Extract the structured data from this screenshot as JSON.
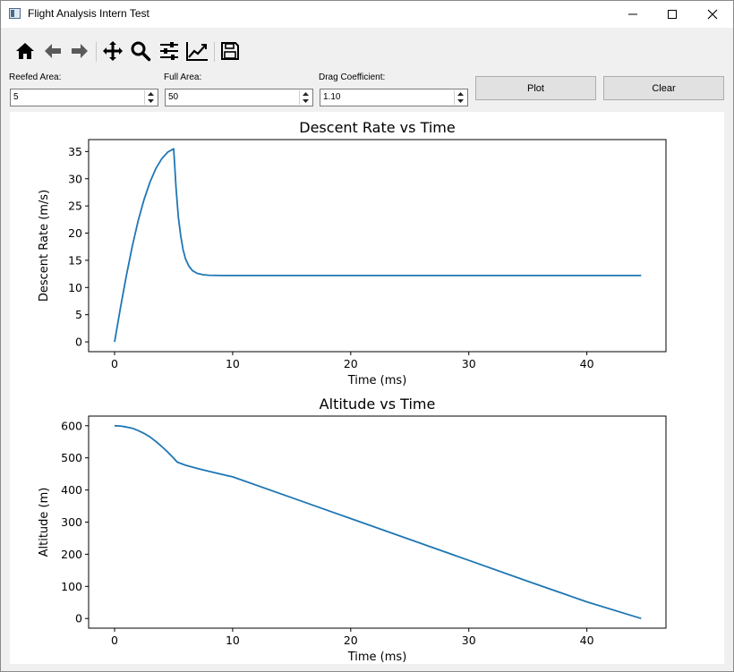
{
  "window": {
    "title": "Flight Analysis Intern Test"
  },
  "toolbar": {
    "icons": [
      "home-icon",
      "back-arrow-icon",
      "forward-arrow-icon",
      "pan-icon",
      "zoom-icon",
      "configure-subplots-icon",
      "edit-axis-icon",
      "save-icon"
    ]
  },
  "inputs": {
    "reefed_area": {
      "label": "Reefed Area:",
      "value": "5"
    },
    "full_area": {
      "label": "Full Area:",
      "value": "50"
    },
    "drag_coefficient": {
      "label": "Drag Coefficient:",
      "value": "1.10"
    }
  },
  "buttons": {
    "plot": "Plot",
    "clear": "Clear"
  },
  "colors": {
    "series": "#1f77b4"
  },
  "chart_data": [
    {
      "type": "line",
      "title": "Descent Rate vs Time",
      "xlabel": "Time (ms)",
      "ylabel": "Descent Rate (m/s)",
      "xlim": [
        -2.2,
        46.7
      ],
      "ylim": [
        -1.8,
        37.2
      ],
      "xticks": [
        0,
        10,
        20,
        30,
        40
      ],
      "yticks": [
        0,
        5,
        10,
        15,
        20,
        25,
        30,
        35
      ],
      "grid": false,
      "series": [
        {
          "x": [
            0,
            0.5,
            1,
            1.5,
            2,
            2.5,
            3,
            3.5,
            4,
            4.5,
            5,
            5.05,
            5.2,
            5.4,
            5.6,
            5.8,
            6.0,
            6.3,
            6.6,
            7.0,
            7.5,
            8.0,
            9.0,
            10.0,
            12.0,
            15,
            20,
            25,
            30,
            35,
            40,
            44.6
          ],
          "y": [
            0,
            6.3,
            12.2,
            17.6,
            22.3,
            26.2,
            29.4,
            31.9,
            33.7,
            34.9,
            35.5,
            34.0,
            28.5,
            23.0,
            19.5,
            17.0,
            15.3,
            13.9,
            13.1,
            12.6,
            12.35,
            12.25,
            12.2,
            12.2,
            12.2,
            12.2,
            12.2,
            12.2,
            12.2,
            12.2,
            12.2,
            12.2
          ]
        }
      ]
    },
    {
      "type": "line",
      "title": "Altitude vs Time",
      "xlabel": "Time (ms)",
      "ylabel": "Altitude (m)",
      "xlim": [
        -2.2,
        46.7
      ],
      "ylim": [
        -30,
        630
      ],
      "xticks": [
        0,
        10,
        20,
        30,
        40
      ],
      "yticks": [
        0,
        100,
        200,
        300,
        400,
        500,
        600
      ],
      "grid": false,
      "series": [
        {
          "x": [
            0,
            0.5,
            1,
            1.5,
            2,
            2.5,
            3,
            3.5,
            4,
            4.5,
            5,
            5.3,
            6,
            7,
            8,
            10,
            15,
            20,
            25,
            30,
            35,
            40,
            44.6
          ],
          "y": [
            600,
            599,
            596,
            592,
            585,
            576,
            565,
            551,
            535,
            518,
            499,
            487,
            477,
            467,
            458,
            441,
            376,
            311,
            246,
            181,
            116,
            52,
            0
          ]
        }
      ]
    }
  ]
}
